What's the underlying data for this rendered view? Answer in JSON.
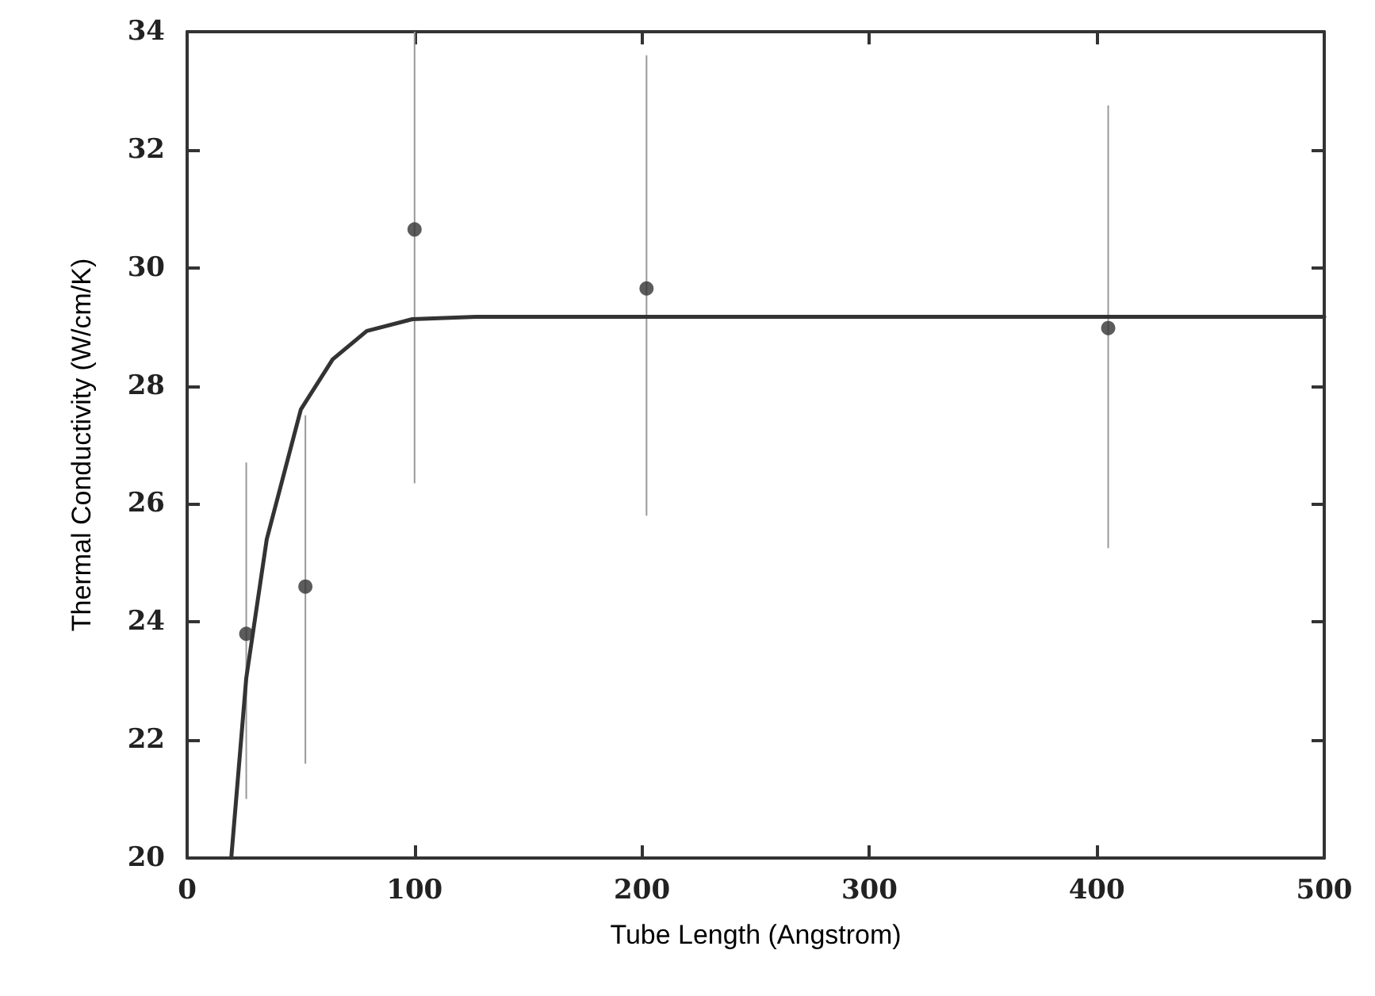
{
  "chart_data": {
    "type": "scatter",
    "xlabel": "Tube Length (Angstrom)",
    "ylabel": "Thermal Conductivity (W/cm/K)",
    "xlim": [
      0,
      500
    ],
    "xticks": [
      0,
      100,
      200,
      300,
      400,
      500
    ],
    "ylim": [
      20,
      34
    ],
    "yticks": [
      20,
      22,
      24,
      26,
      28,
      30,
      32,
      34
    ],
    "grid": false,
    "marker": "circle",
    "series": [
      {
        "color": "#333333",
        "x": [
          26,
          52,
          100,
          202,
          405
        ],
        "values": [
          23.8,
          24.6,
          30.65,
          29.65,
          28.98
        ],
        "errors": [
          [
            21.0,
            26.7
          ],
          [
            21.6,
            27.5
          ],
          [
            26.35,
            34
          ],
          [
            25.8,
            33.6
          ],
          [
            25.25,
            32.75
          ]
        ]
      },
      {
        "type": "line",
        "color": "#333333",
        "marker": "none",
        "line_style": "solid",
        "x": [
          19.4,
          26,
          35,
          50,
          64,
          79,
          99,
          127,
          200,
          300,
          400,
          500
        ],
        "values": [
          20,
          23.05,
          25.4,
          27.6,
          28.45,
          28.93,
          29.13,
          29.17,
          29.17,
          29.17,
          29.17,
          29.17
        ]
      }
    ]
  }
}
